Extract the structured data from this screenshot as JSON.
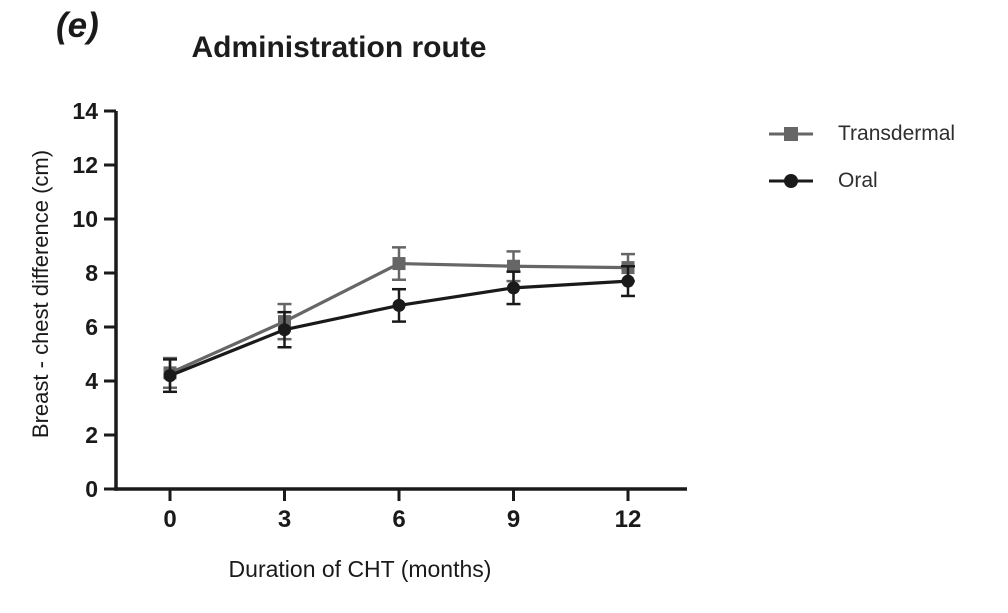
{
  "chart_data": {
    "type": "line",
    "panel_label": "(e)",
    "title": "Administration route",
    "xlabel": "Duration of CHT (months)",
    "ylabel": "Breast - chest difference (cm)",
    "x": [
      0,
      3,
      6,
      9,
      12
    ],
    "x_ticks": [
      0,
      3,
      6,
      9,
      12
    ],
    "y_ticks": [
      0,
      2,
      4,
      6,
      8,
      10,
      12,
      14
    ],
    "xlim": [
      0,
      12
    ],
    "ylim": [
      0,
      14
    ],
    "grid": false,
    "axis_color": "#1a1a1a",
    "legend_position": "right-top",
    "error_bars": true,
    "series": [
      {
        "name": "Transdermal",
        "marker": "square",
        "color": "#666666",
        "values": [
          4.3,
          6.2,
          8.35,
          8.25,
          8.2
        ],
        "errors": [
          0.55,
          0.65,
          0.6,
          0.55,
          0.5
        ]
      },
      {
        "name": "Oral",
        "marker": "circle",
        "color": "#1a1a1a",
        "values": [
          4.2,
          5.9,
          6.8,
          7.45,
          7.7
        ],
        "errors": [
          0.6,
          0.65,
          0.6,
          0.6,
          0.55
        ]
      }
    ]
  }
}
